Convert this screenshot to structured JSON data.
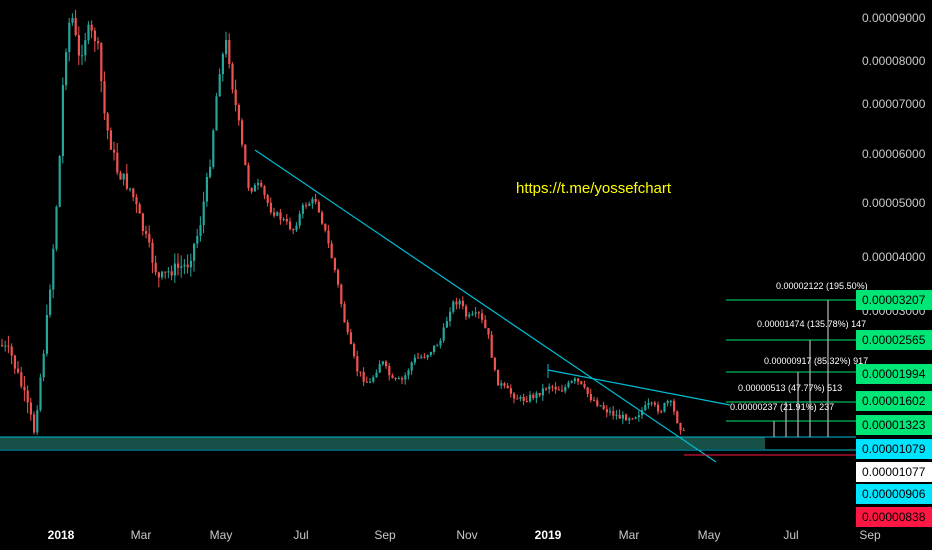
{
  "chart_data": {
    "type": "candlestick",
    "ylim": [
      7.7e-06,
      9.6e-06
    ],
    "y_ticks": [
      "0.00009000",
      "0.00008000",
      "0.00007000",
      "0.00006000",
      "0.00005000",
      "0.00004000",
      "0.00003000"
    ],
    "x_ticks": [
      {
        "label": "2018",
        "bold": true
      },
      {
        "label": "Mar",
        "bold": false
      },
      {
        "label": "May",
        "bold": false
      },
      {
        "label": "Jul",
        "bold": false
      },
      {
        "label": "Sep",
        "bold": false
      },
      {
        "label": "Nov",
        "bold": false
      },
      {
        "label": "2019",
        "bold": true
      },
      {
        "label": "Mar",
        "bold": false
      },
      {
        "label": "May",
        "bold": false
      },
      {
        "label": "Jul",
        "bold": false
      },
      {
        "label": "Sep",
        "bold": false
      }
    ],
    "price_tags": [
      {
        "label": "0.00003207",
        "bg": "#00e676",
        "fg": "#000000"
      },
      {
        "label": "0.00002565",
        "bg": "#00e676",
        "fg": "#000000"
      },
      {
        "label": "0.00001994",
        "bg": "#00e676",
        "fg": "#000000"
      },
      {
        "label": "0.00001602",
        "bg": "#00e676",
        "fg": "#000000"
      },
      {
        "label": "0.00001323",
        "bg": "#00e676",
        "fg": "#000000"
      },
      {
        "label": "0.00001079",
        "bg": "#00e5ff",
        "fg": "#000000"
      },
      {
        "label": "0.00001077",
        "bg": "#ffffff",
        "fg": "#000000"
      },
      {
        "label": "0.00000906",
        "bg": "#00e5ff",
        "fg": "#000000"
      },
      {
        "label": "0.00000838",
        "bg": "#ff1744",
        "fg": "#000000"
      }
    ],
    "projections": [
      {
        "text": "0.00002122 (195.50%)"
      },
      {
        "text": "0.00001474 (135.78%) 147"
      },
      {
        "text": "0.00000917 (85.32%) 917"
      },
      {
        "text": "0.00000513 (47.77%) 513"
      },
      {
        "text": "0.00000237 (21.91%) 237"
      }
    ],
    "annotation": "https://t.me/yossefchart",
    "colors": {
      "up": "#26a69a",
      "down": "#ef5350",
      "trendline": "#00bcd4",
      "target_line": "#00e676",
      "support_zone": "#1a5e52",
      "stop_line": "#ff1744"
    }
  }
}
